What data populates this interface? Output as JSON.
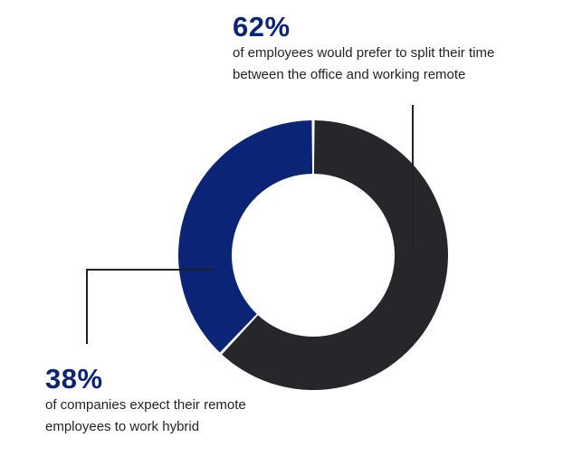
{
  "chart_data": {
    "type": "pie",
    "style": "donut",
    "slices": [
      {
        "label": "62%",
        "value": 62,
        "color": "#26272b",
        "description": "of employees would prefer to split their time between the office and working remote"
      },
      {
        "label": "38%",
        "value": 38,
        "color": "#0b2475",
        "description": "of companies expect their remote employees to work hybrid"
      }
    ]
  },
  "annotations": {
    "top": {
      "value": "62%",
      "line1": "of employees would prefer to split their time",
      "line2": "between the office and working remote",
      "color": "#0b2475"
    },
    "bottom": {
      "value": "38%",
      "line1": "of companies expect their remote",
      "line2": "employees to work hybrid",
      "color": "#0b2475"
    }
  }
}
